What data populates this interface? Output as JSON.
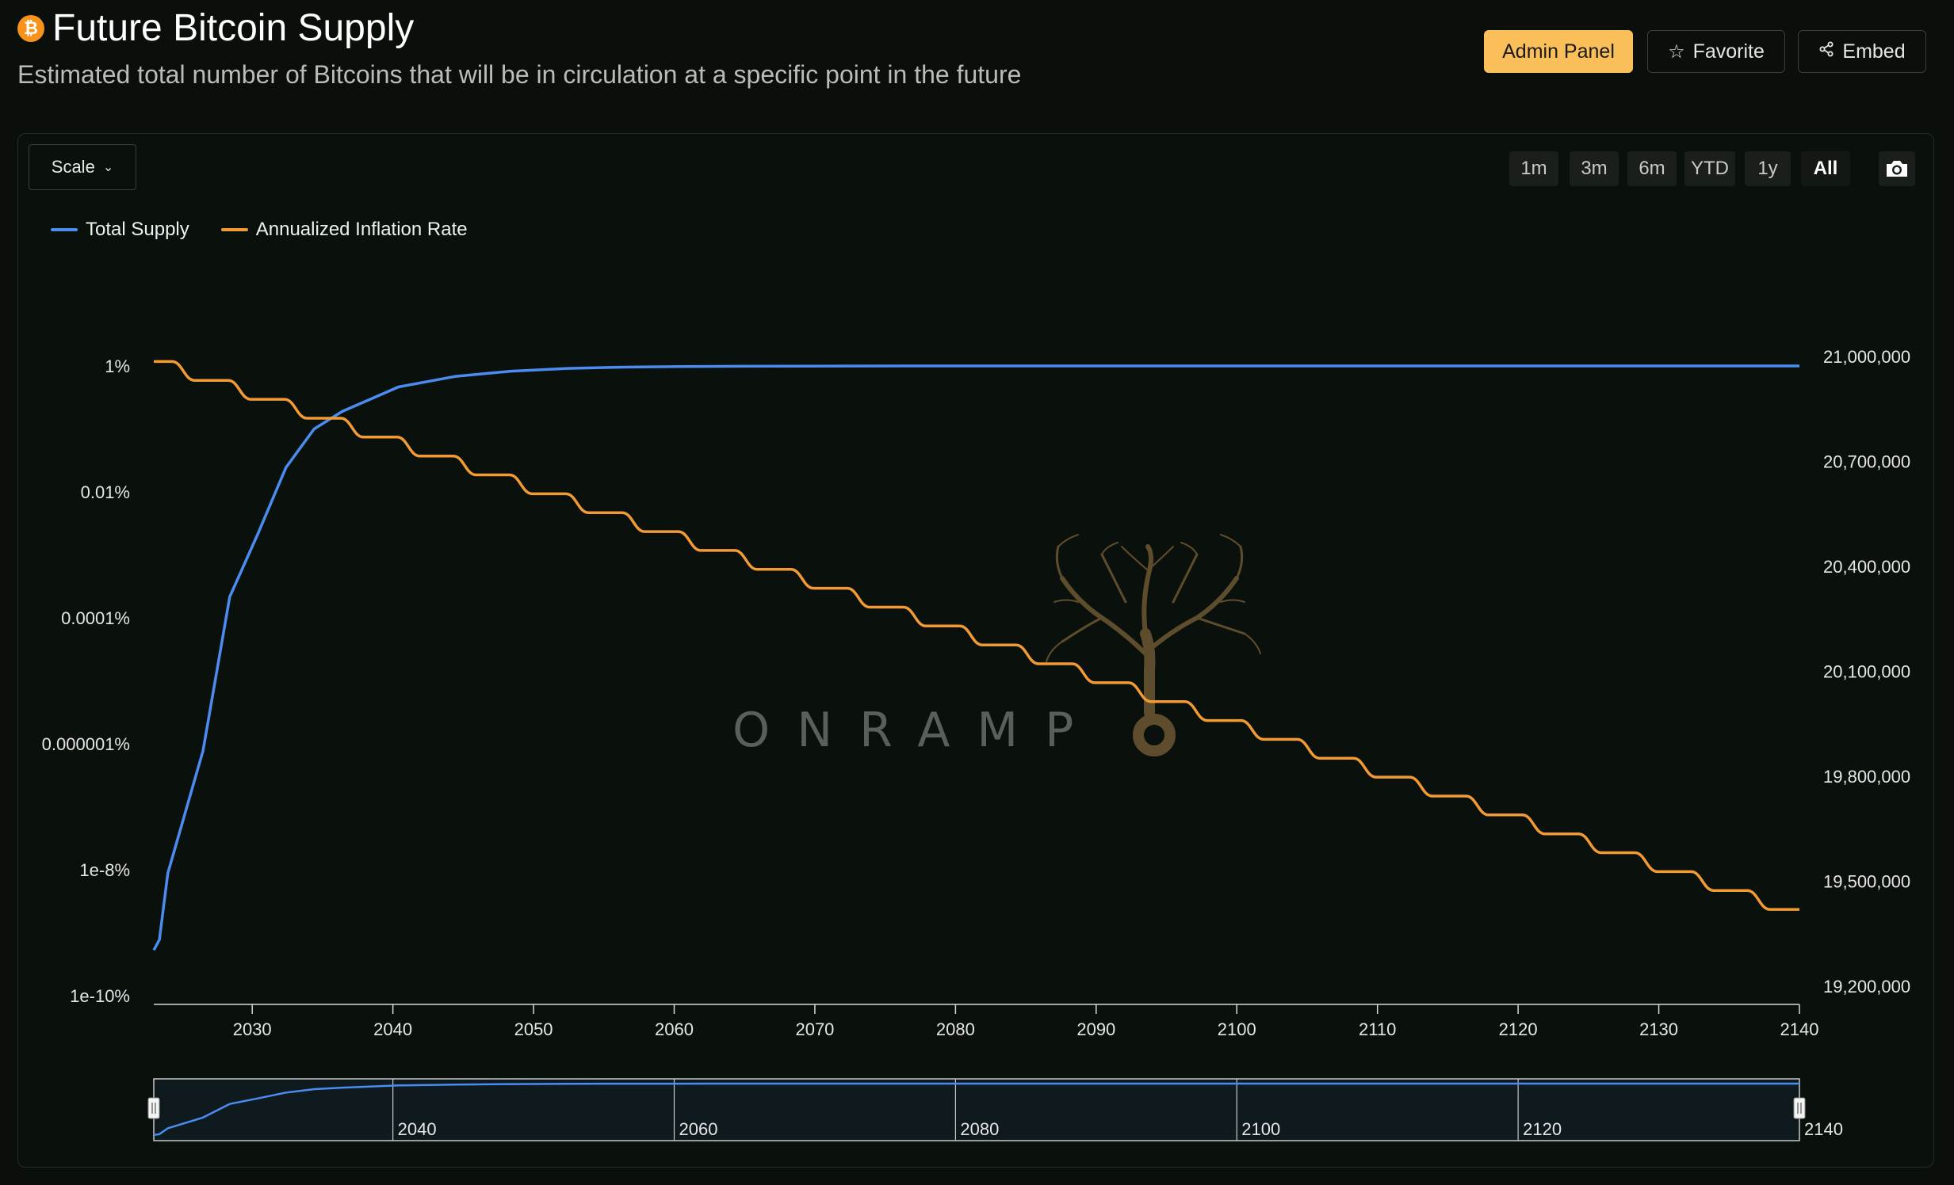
{
  "header": {
    "title": "Future Bitcoin Supply",
    "subtitle": "Estimated total number of Bitcoins that will be in circulation at a specific point in the future",
    "icon": "bitcoin-icon",
    "admin_label": "Admin Panel",
    "favorite_label": "Favorite",
    "embed_label": "Embed"
  },
  "controls": {
    "scale_label": "Scale",
    "ranges": [
      "1m",
      "3m",
      "6m",
      "YTD",
      "1y",
      "All"
    ],
    "active_range": "All"
  },
  "watermark": {
    "text": "ONRAMP"
  },
  "colors": {
    "supply": "#4a8cf0",
    "inflation": "#f29a33",
    "accent": "#fbbf5a",
    "background": "#0a0f0b"
  },
  "chart_data": {
    "type": "line",
    "title": "Future Bitcoin Supply",
    "x_range": [
      2023,
      2140
    ],
    "x_ticks": [
      "2030",
      "2040",
      "2050",
      "2060",
      "2070",
      "2080",
      "2090",
      "2100",
      "2110",
      "2120",
      "2130",
      "2140"
    ],
    "left_axis": {
      "scale": "log",
      "ticks": [
        "1%",
        "0.01%",
        "0.0001%",
        "0.000001%",
        "1e-8%",
        "1e-10%"
      ],
      "range_log10": [
        -10,
        0
      ]
    },
    "right_axis": {
      "scale": "linear",
      "ticks": [
        "21,000,000",
        "20,700,000",
        "20,400,000",
        "20,100,000",
        "19,800,000",
        "19,500,000",
        "19,200,000"
      ],
      "range": [
        19200000,
        21000000
      ]
    },
    "series": [
      {
        "name": "Total Supply",
        "axis": "right",
        "x": [
          2023.0,
          2023.4,
          2024.0,
          2024.5,
          2026.5,
          2028.4,
          2030.4,
          2032.4,
          2034.4,
          2036.4,
          2040.4,
          2044.4,
          2048.4,
          2052.4,
          2056.4,
          2060.4,
          2064.4,
          2072.4,
          2080.4,
          2140.0
        ],
        "values": [
          19330000,
          19360000,
          19550000,
          19620000,
          19900000,
          20340000,
          20520000,
          20710000,
          20820000,
          20870000,
          20940000,
          20970000,
          20985000,
          20993000,
          20996500,
          20998200,
          20999100,
          20999800,
          20999950,
          20999990
        ]
      },
      {
        "name": "Annualized Inflation Rate",
        "axis": "left",
        "step_starts": [
          2024.3,
          2028.3,
          2032.3,
          2036.3,
          2040.3,
          2044.3,
          2048.3,
          2052.3,
          2056.3,
          2060.3,
          2064.3,
          2068.3,
          2072.3,
          2076.3,
          2080.3,
          2084.3,
          2088.3,
          2092.3,
          2096.3,
          2100.3,
          2104.3,
          2108.3,
          2112.3,
          2116.3,
          2120.3,
          2124.3,
          2128.3,
          2132.3,
          2136.3
        ],
        "initial_log10": 0.07,
        "drop_per_halving": -0.3,
        "values_log10": [
          -0.23,
          -0.53,
          -0.83,
          -1.13,
          -1.43,
          -1.73,
          -2.03,
          -2.33,
          -2.63,
          -2.93,
          -3.23,
          -3.53,
          -3.83,
          -4.13,
          -4.43,
          -4.73,
          -5.03,
          -5.33,
          -5.63,
          -5.93,
          -6.23,
          -6.53,
          -6.83,
          -7.13,
          -7.43,
          -7.73,
          -8.03,
          -8.33,
          -8.63
        ]
      }
    ],
    "navigator": {
      "labels": [
        "2040",
        "2060",
        "2080",
        "2100",
        "2120",
        "2140"
      ]
    }
  }
}
